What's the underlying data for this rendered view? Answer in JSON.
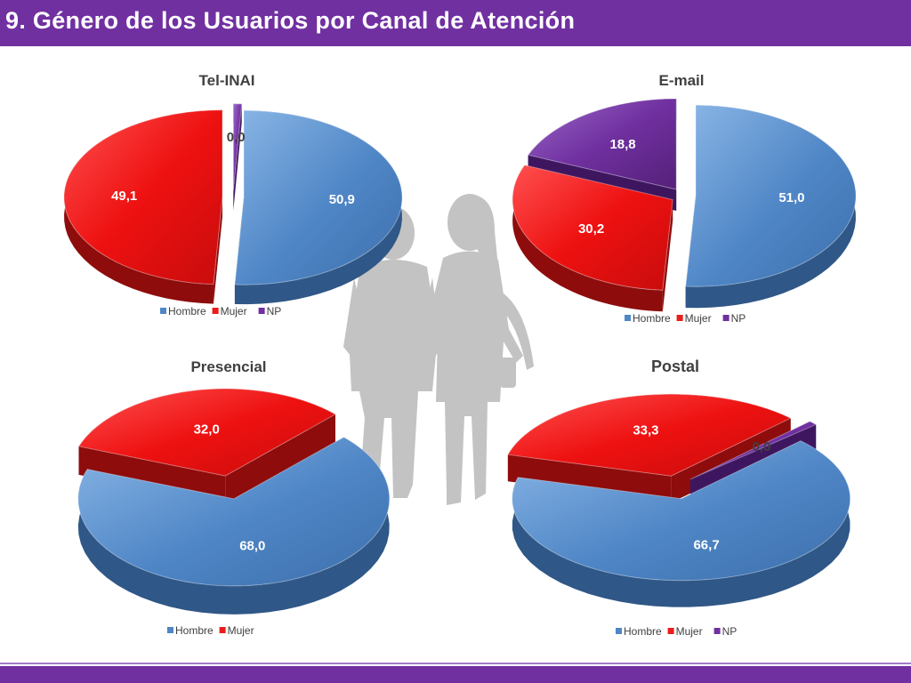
{
  "slide": {
    "title": "9. Género de los Usuarios por Canal de Atención"
  },
  "colors": {
    "Hombre": "#4e86c6",
    "Mujer": "#ec1c1c",
    "NP": "#7030a0",
    "title_bar": "#7030a0",
    "silhouette": "#c0c0c0"
  },
  "decoration": {
    "center_image_icon": "couple-silhouette-icon"
  },
  "chart_data": [
    {
      "type": "pie",
      "title": "Tel-INAI",
      "categories": [
        "Hombre",
        "Mujer",
        "NP"
      ],
      "values": [
        50.9,
        49.1,
        0.0
      ],
      "value_labels": [
        "50,9",
        "49,1",
        "0,0"
      ],
      "legend": [
        "Hombre",
        "Mujer",
        "NP"
      ],
      "legend_position": "bottom",
      "exploded": true
    },
    {
      "type": "pie",
      "title": "E-mail",
      "categories": [
        "Hombre",
        "Mujer",
        "NP"
      ],
      "values": [
        51.0,
        30.2,
        18.8
      ],
      "value_labels": [
        "51,0",
        "30,2",
        "18,8"
      ],
      "legend": [
        "Hombre",
        "Mujer",
        "NP"
      ],
      "legend_position": "bottom",
      "exploded": true
    },
    {
      "type": "pie",
      "title": "Presencial",
      "categories": [
        "Hombre",
        "Mujer"
      ],
      "values": [
        68.0,
        32.0
      ],
      "value_labels": [
        "68,0",
        "32,0"
      ],
      "legend": [
        "Hombre",
        "Mujer"
      ],
      "legend_position": "bottom",
      "exploded": true
    },
    {
      "type": "pie",
      "title": "Postal",
      "categories": [
        "Hombre",
        "Mujer",
        "NP"
      ],
      "values": [
        66.7,
        33.3,
        0.0
      ],
      "value_labels": [
        "66,7",
        "33,3",
        "0,0"
      ],
      "legend": [
        "Hombre",
        "Mujer",
        "NP"
      ],
      "legend_position": "bottom",
      "exploded": true
    }
  ]
}
